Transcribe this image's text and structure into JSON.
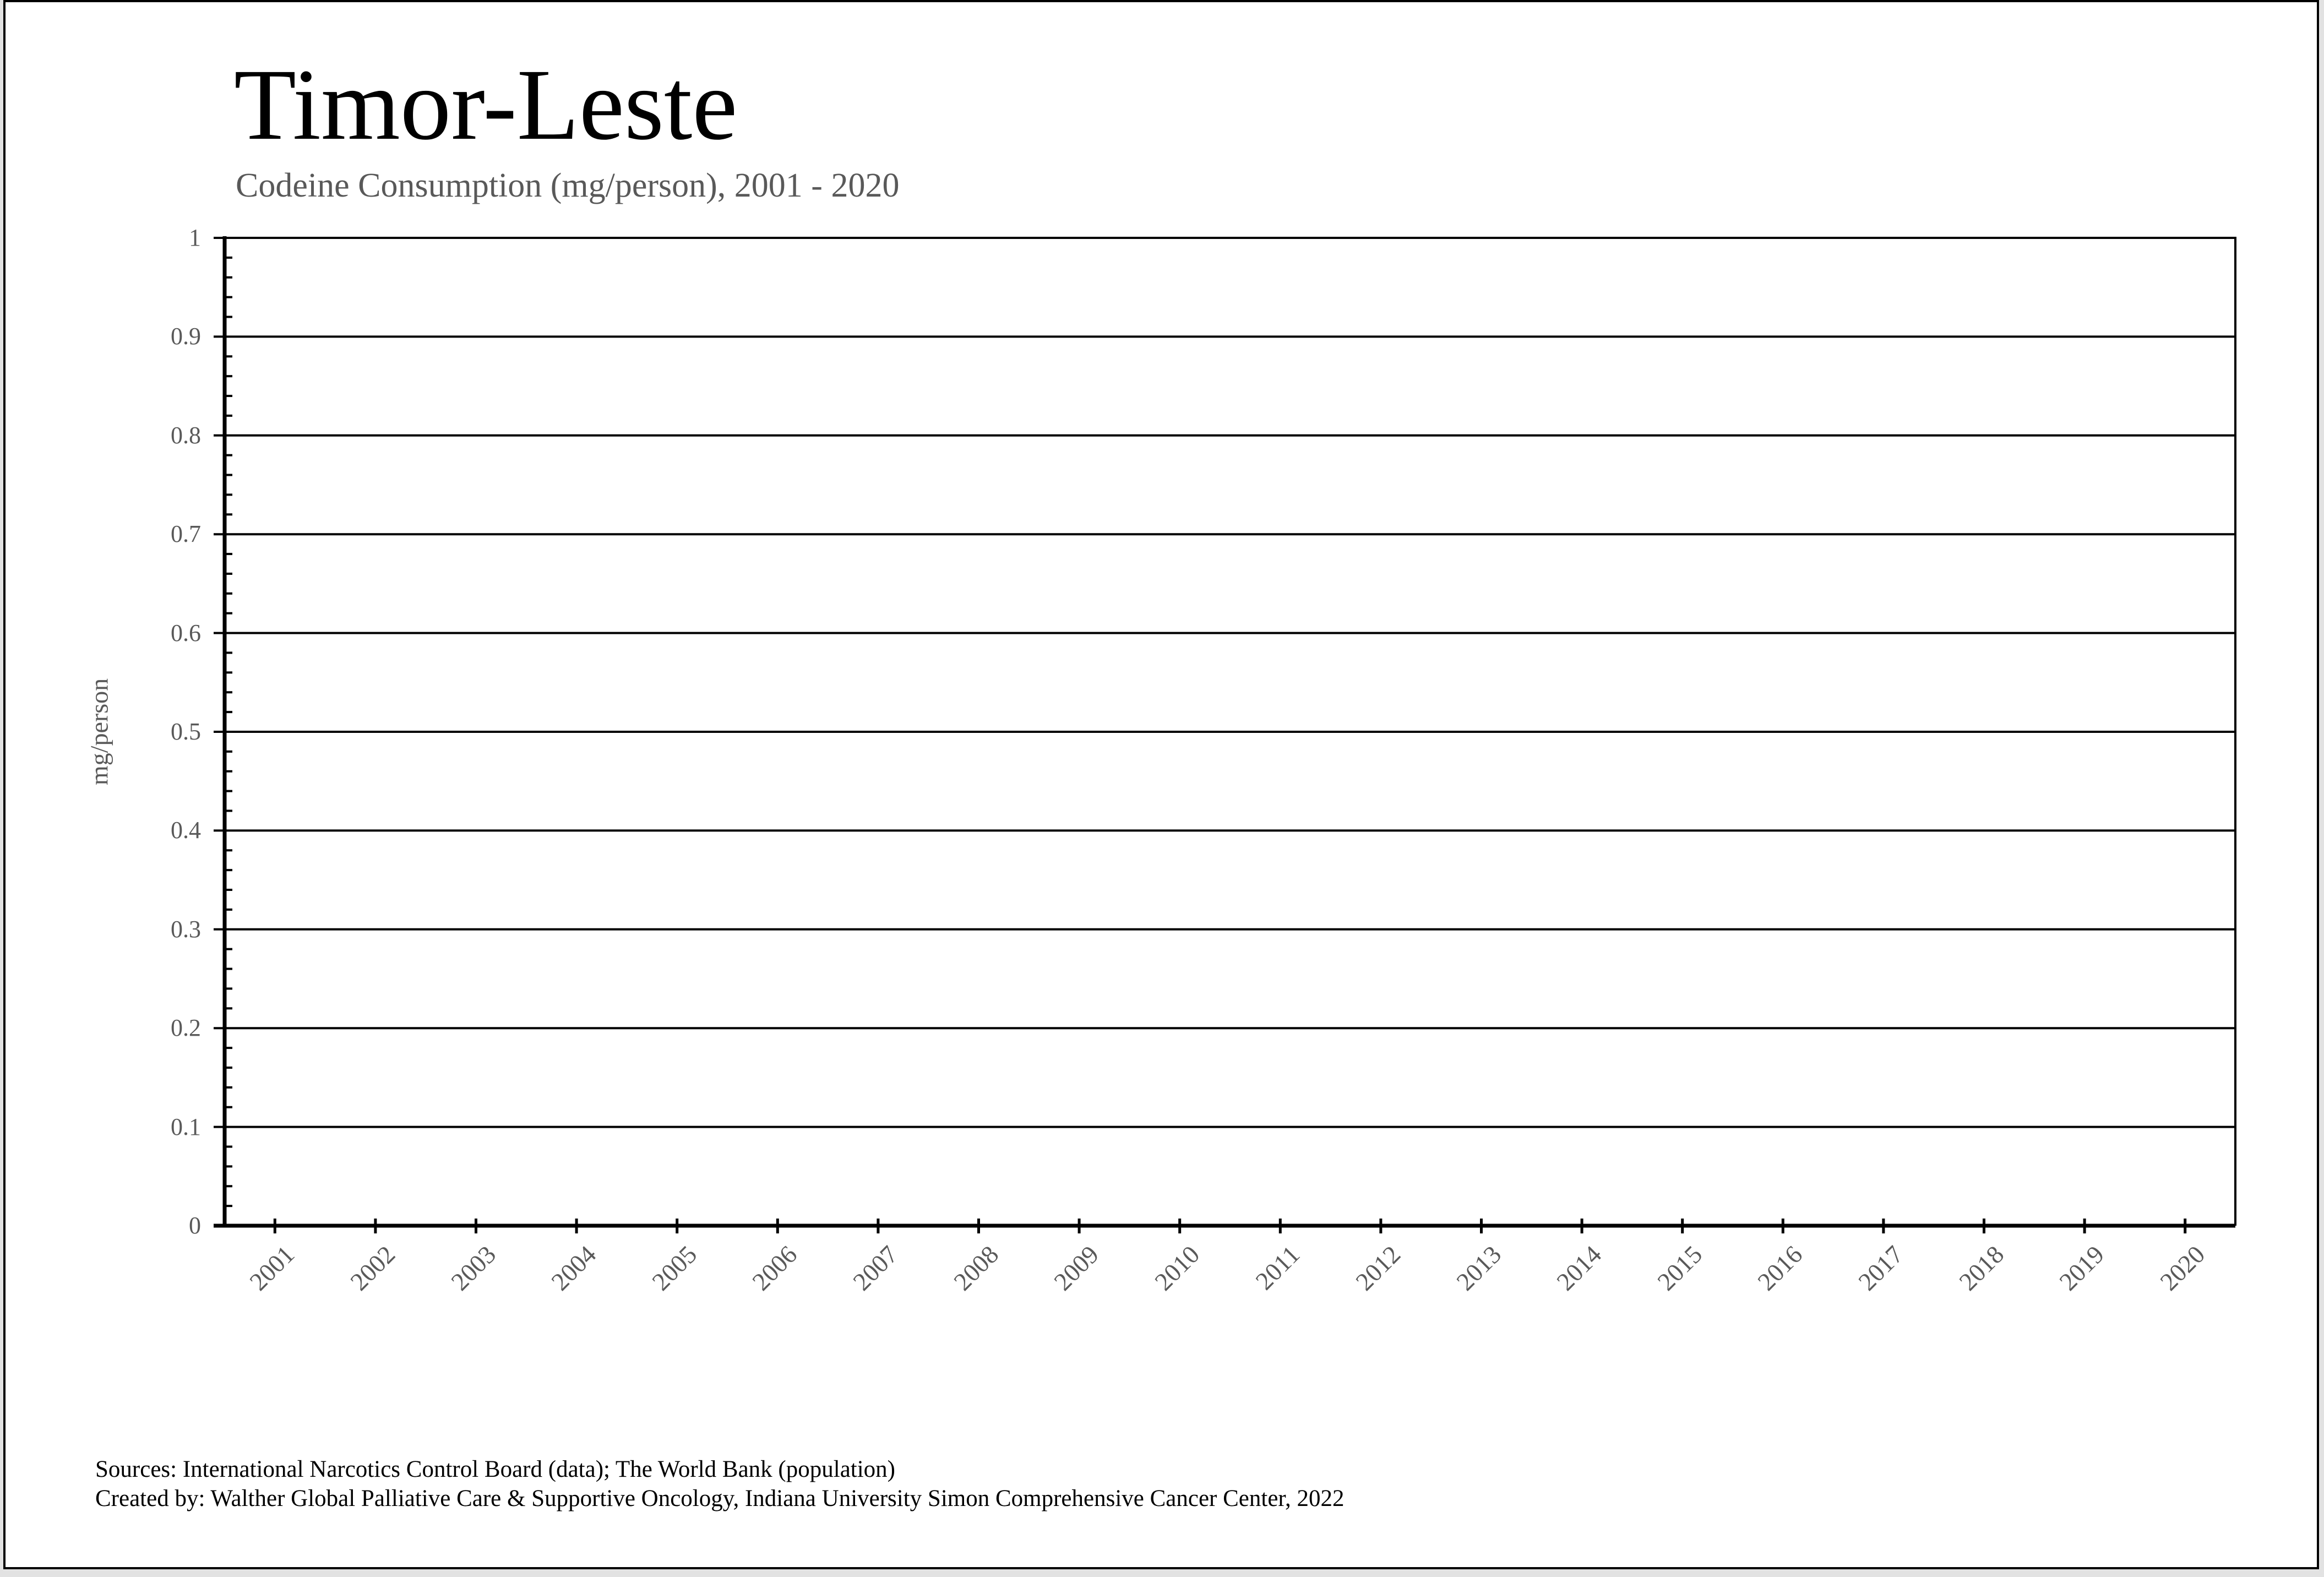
{
  "header": {
    "title": "Timor-Leste",
    "subtitle": "Codeine Consumption (mg/person), 2001 - 2020"
  },
  "chart_data": {
    "type": "line",
    "title": "Timor-Leste",
    "subtitle": "Codeine Consumption (mg/person), 2001 - 2020",
    "categories": [
      "2001",
      "2002",
      "2003",
      "2004",
      "2005",
      "2006",
      "2007",
      "2008",
      "2009",
      "2010",
      "2011",
      "2012",
      "2013",
      "2014",
      "2015",
      "2016",
      "2017",
      "2018",
      "2019",
      "2020"
    ],
    "series": [
      {
        "name": "Codeine Consumption (mg/person)",
        "values": [
          0,
          0,
          0,
          0,
          0,
          0,
          0,
          0,
          0,
          0,
          0,
          0,
          0,
          0,
          0,
          0,
          0,
          0,
          0,
          0
        ]
      }
    ],
    "xlabel": "",
    "ylabel": "mg/person",
    "ylim": [
      0,
      1
    ],
    "ytick_labels": [
      "0",
      "0.1",
      "0.2",
      "0.3",
      "0.4",
      "0.5",
      "0.6",
      "0.7",
      "0.8",
      "0.9",
      "1"
    ],
    "y_minor_tick_step": 0.02,
    "grid": "horizontal-major",
    "legend": "none"
  },
  "footer": {
    "sources_line": "Sources: International Narcotics Control Board (data); The World Bank (population)",
    "created_by_line": "Created by: Walther Global Palliative Care & Supportive Oncology, Indiana University Simon Comprehensive Cancer Center, 2022"
  },
  "colors": {
    "text_primary": "#000000",
    "text_muted": "#595959",
    "axis": "#000000",
    "gridline": "#000000",
    "background": "#ffffff",
    "page_border": "#000000",
    "outer_background": "#e2e2e2"
  }
}
